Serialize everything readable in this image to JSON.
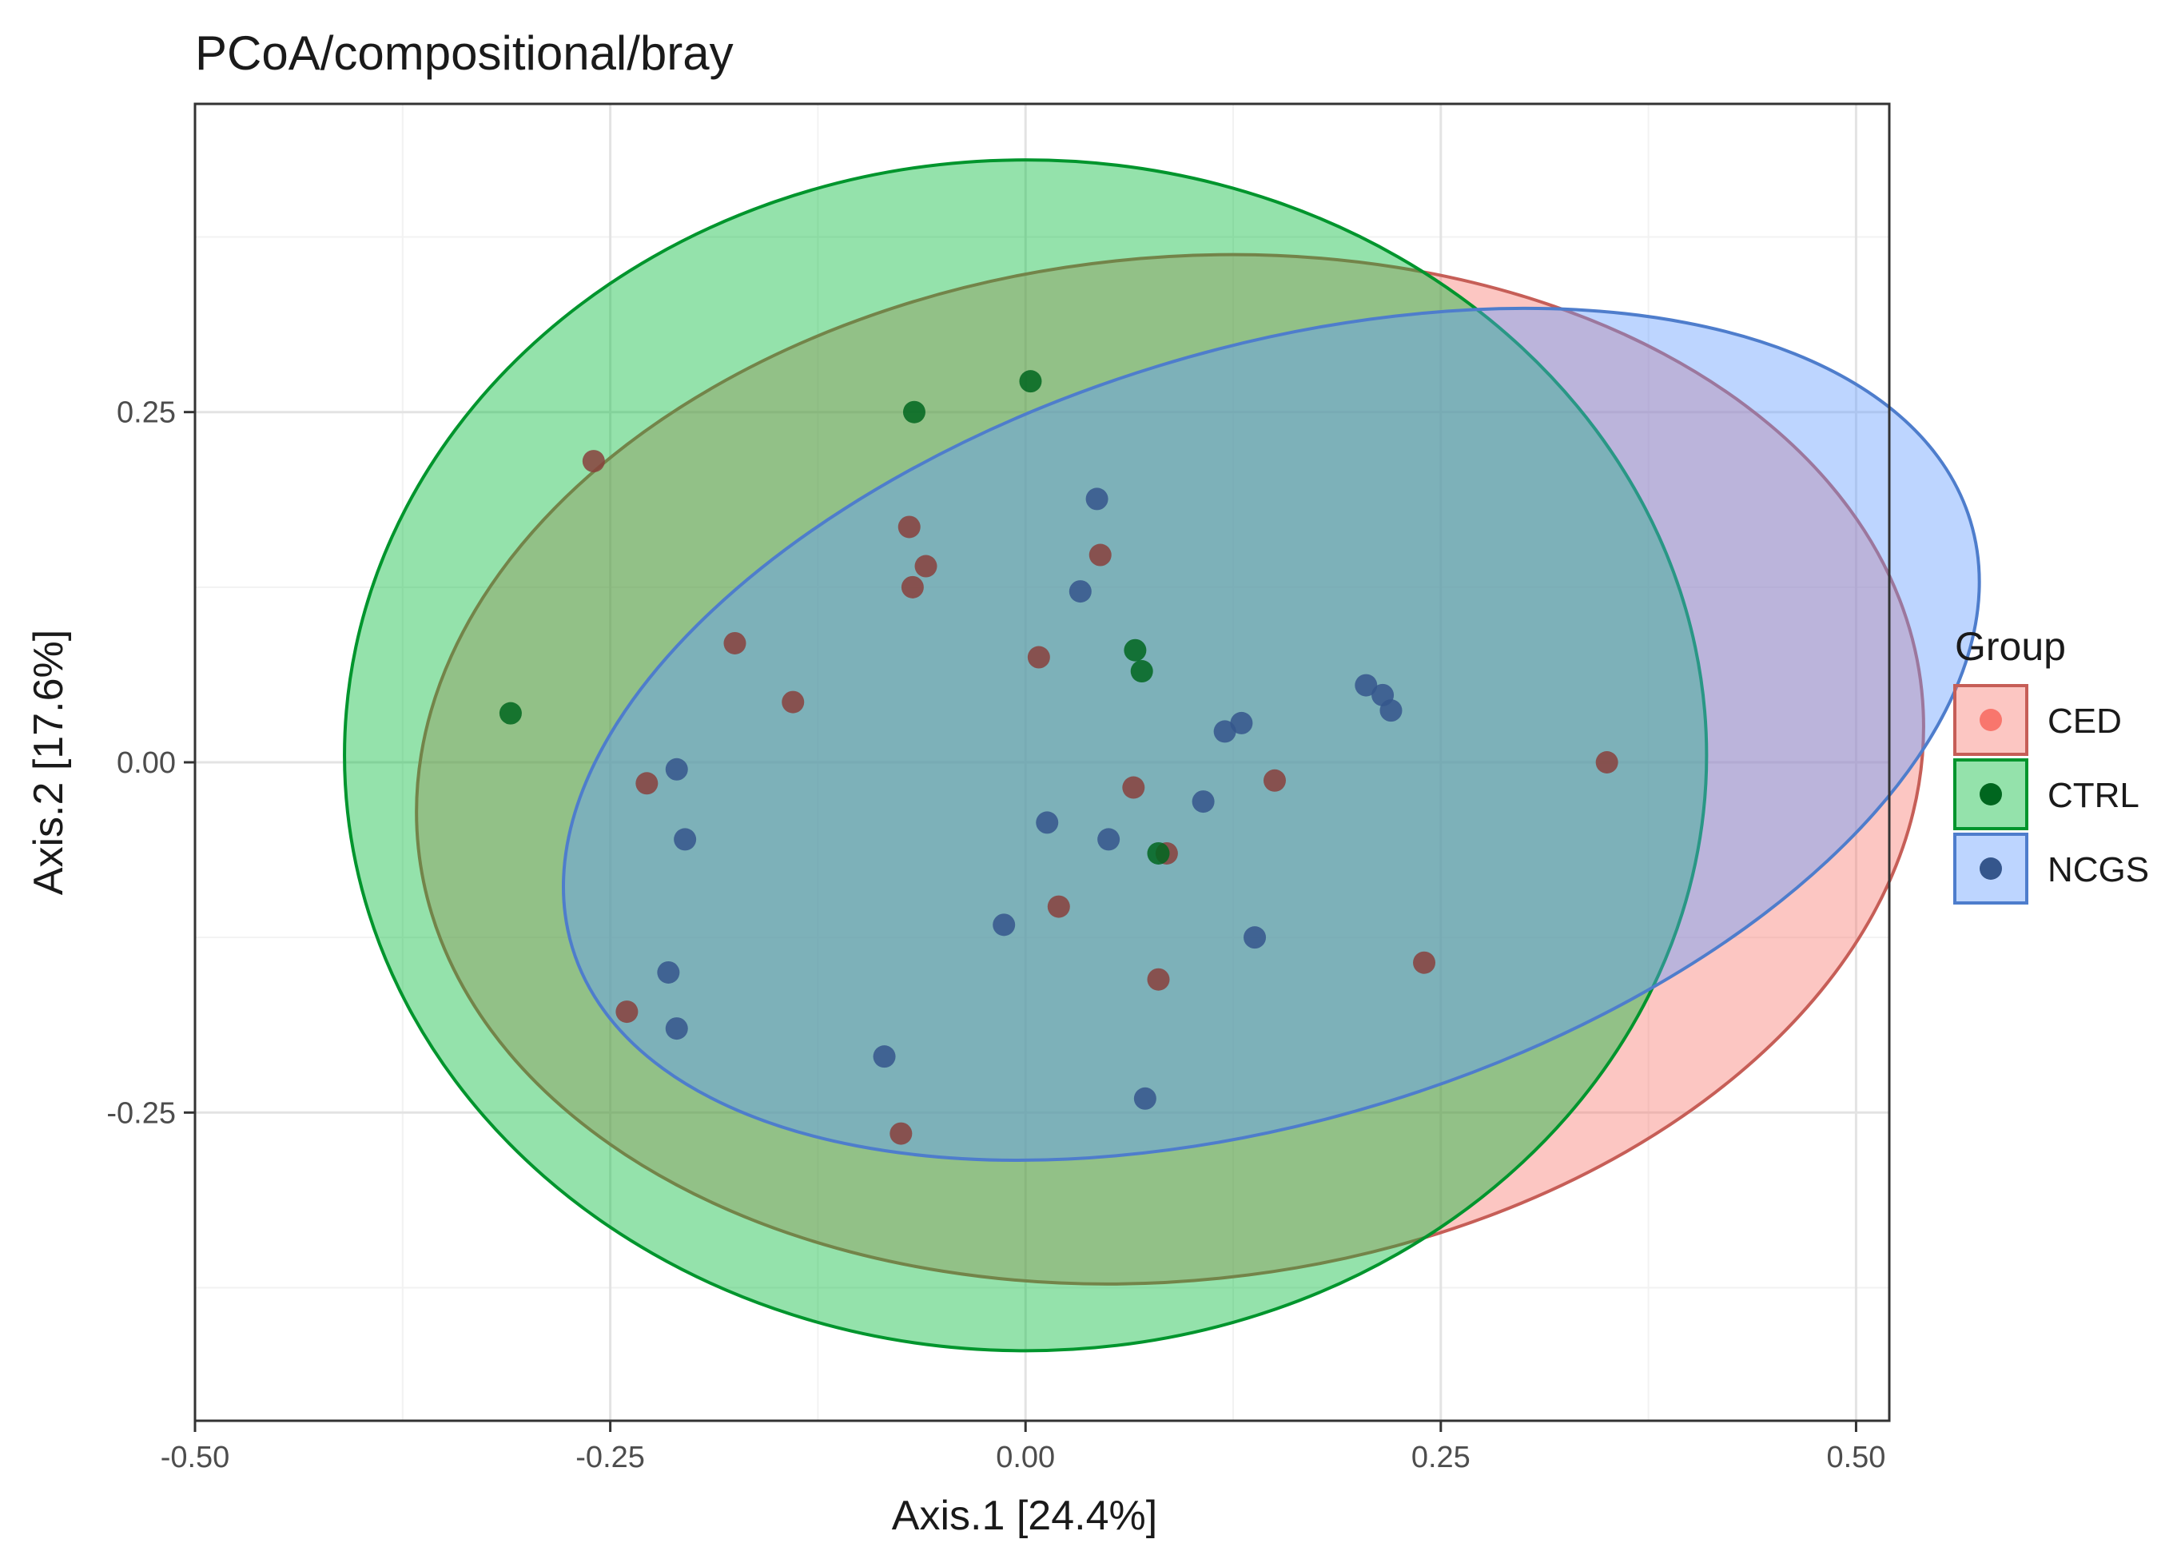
{
  "chart_data": {
    "type": "scatter",
    "title": "PCoA/compositional/bray",
    "xlabel": "Axis.1   [24.4%]",
    "ylabel": "Axis.2   [17.6%]",
    "xlim": [
      -0.5,
      0.52
    ],
    "ylim": [
      -0.47,
      0.47
    ],
    "x_ticks": [
      -0.5,
      -0.25,
      0.0,
      0.25,
      0.5
    ],
    "x_tick_labels": [
      "-0.50",
      "-0.25",
      "0.00",
      "0.25",
      "0.50"
    ],
    "y_ticks": [
      0.25,
      0.0,
      -0.25
    ],
    "y_tick_labels": [
      "0.25",
      "0.00",
      "-0.25"
    ],
    "grid": true,
    "legend": {
      "title": "Group",
      "position": "right",
      "entries": [
        "CED",
        "CTRL",
        "NCGS"
      ]
    },
    "colors": {
      "CED": "#F8766D",
      "CTRL": "#00BA38",
      "NCGS": "#619CFF"
    },
    "series": [
      {
        "name": "CED",
        "color": "#F8766D",
        "ellipse": {
          "cx": 0.087,
          "cy": -0.005,
          "rx": 0.455,
          "ry": 0.365,
          "angle_deg": -6
        },
        "points": [
          [
            -0.26,
            0.215
          ],
          [
            -0.07,
            0.168
          ],
          [
            -0.06,
            0.14
          ],
          [
            -0.068,
            0.125
          ],
          [
            -0.175,
            0.085
          ],
          [
            -0.14,
            0.043
          ],
          [
            0.045,
            0.148
          ],
          [
            0.008,
            0.075
          ],
          [
            -0.228,
            -0.015
          ],
          [
            0.065,
            -0.018
          ],
          [
            0.15,
            -0.013
          ],
          [
            0.085,
            -0.065
          ],
          [
            0.35,
            0.0
          ],
          [
            0.02,
            -0.103
          ],
          [
            0.08,
            -0.155
          ],
          [
            0.24,
            -0.143
          ],
          [
            -0.24,
            -0.178
          ],
          [
            -0.075,
            -0.265
          ]
        ]
      },
      {
        "name": "CTRL",
        "color": "#00BA38",
        "ellipse": {
          "cx": 0.0,
          "cy": 0.005,
          "rx": 0.41,
          "ry": 0.425,
          "angle_deg": 0
        },
        "points": [
          [
            0.003,
            0.272
          ],
          [
            -0.067,
            0.25
          ],
          [
            -0.31,
            0.035
          ],
          [
            0.08,
            -0.065
          ],
          [
            0.07,
            0.065
          ],
          [
            0.066,
            0.08
          ]
        ]
      },
      {
        "name": "NCGS",
        "color": "#619CFF",
        "ellipse": {
          "cx": 0.148,
          "cy": 0.02,
          "rx": 0.44,
          "ry": 0.275,
          "angle_deg": -17
        },
        "points": [
          [
            0.043,
            0.188
          ],
          [
            0.033,
            0.122
          ],
          [
            -0.21,
            -0.005
          ],
          [
            -0.205,
            -0.055
          ],
          [
            0.013,
            -0.043
          ],
          [
            0.05,
            -0.055
          ],
          [
            0.107,
            -0.028
          ],
          [
            0.12,
            0.022
          ],
          [
            0.13,
            0.028
          ],
          [
            0.205,
            0.055
          ],
          [
            0.215,
            0.048
          ],
          [
            0.22,
            0.037
          ],
          [
            -0.013,
            -0.116
          ],
          [
            0.138,
            -0.125
          ],
          [
            -0.215,
            -0.15
          ],
          [
            -0.21,
            -0.19
          ],
          [
            -0.085,
            -0.21
          ],
          [
            0.072,
            -0.24
          ]
        ]
      }
    ]
  }
}
